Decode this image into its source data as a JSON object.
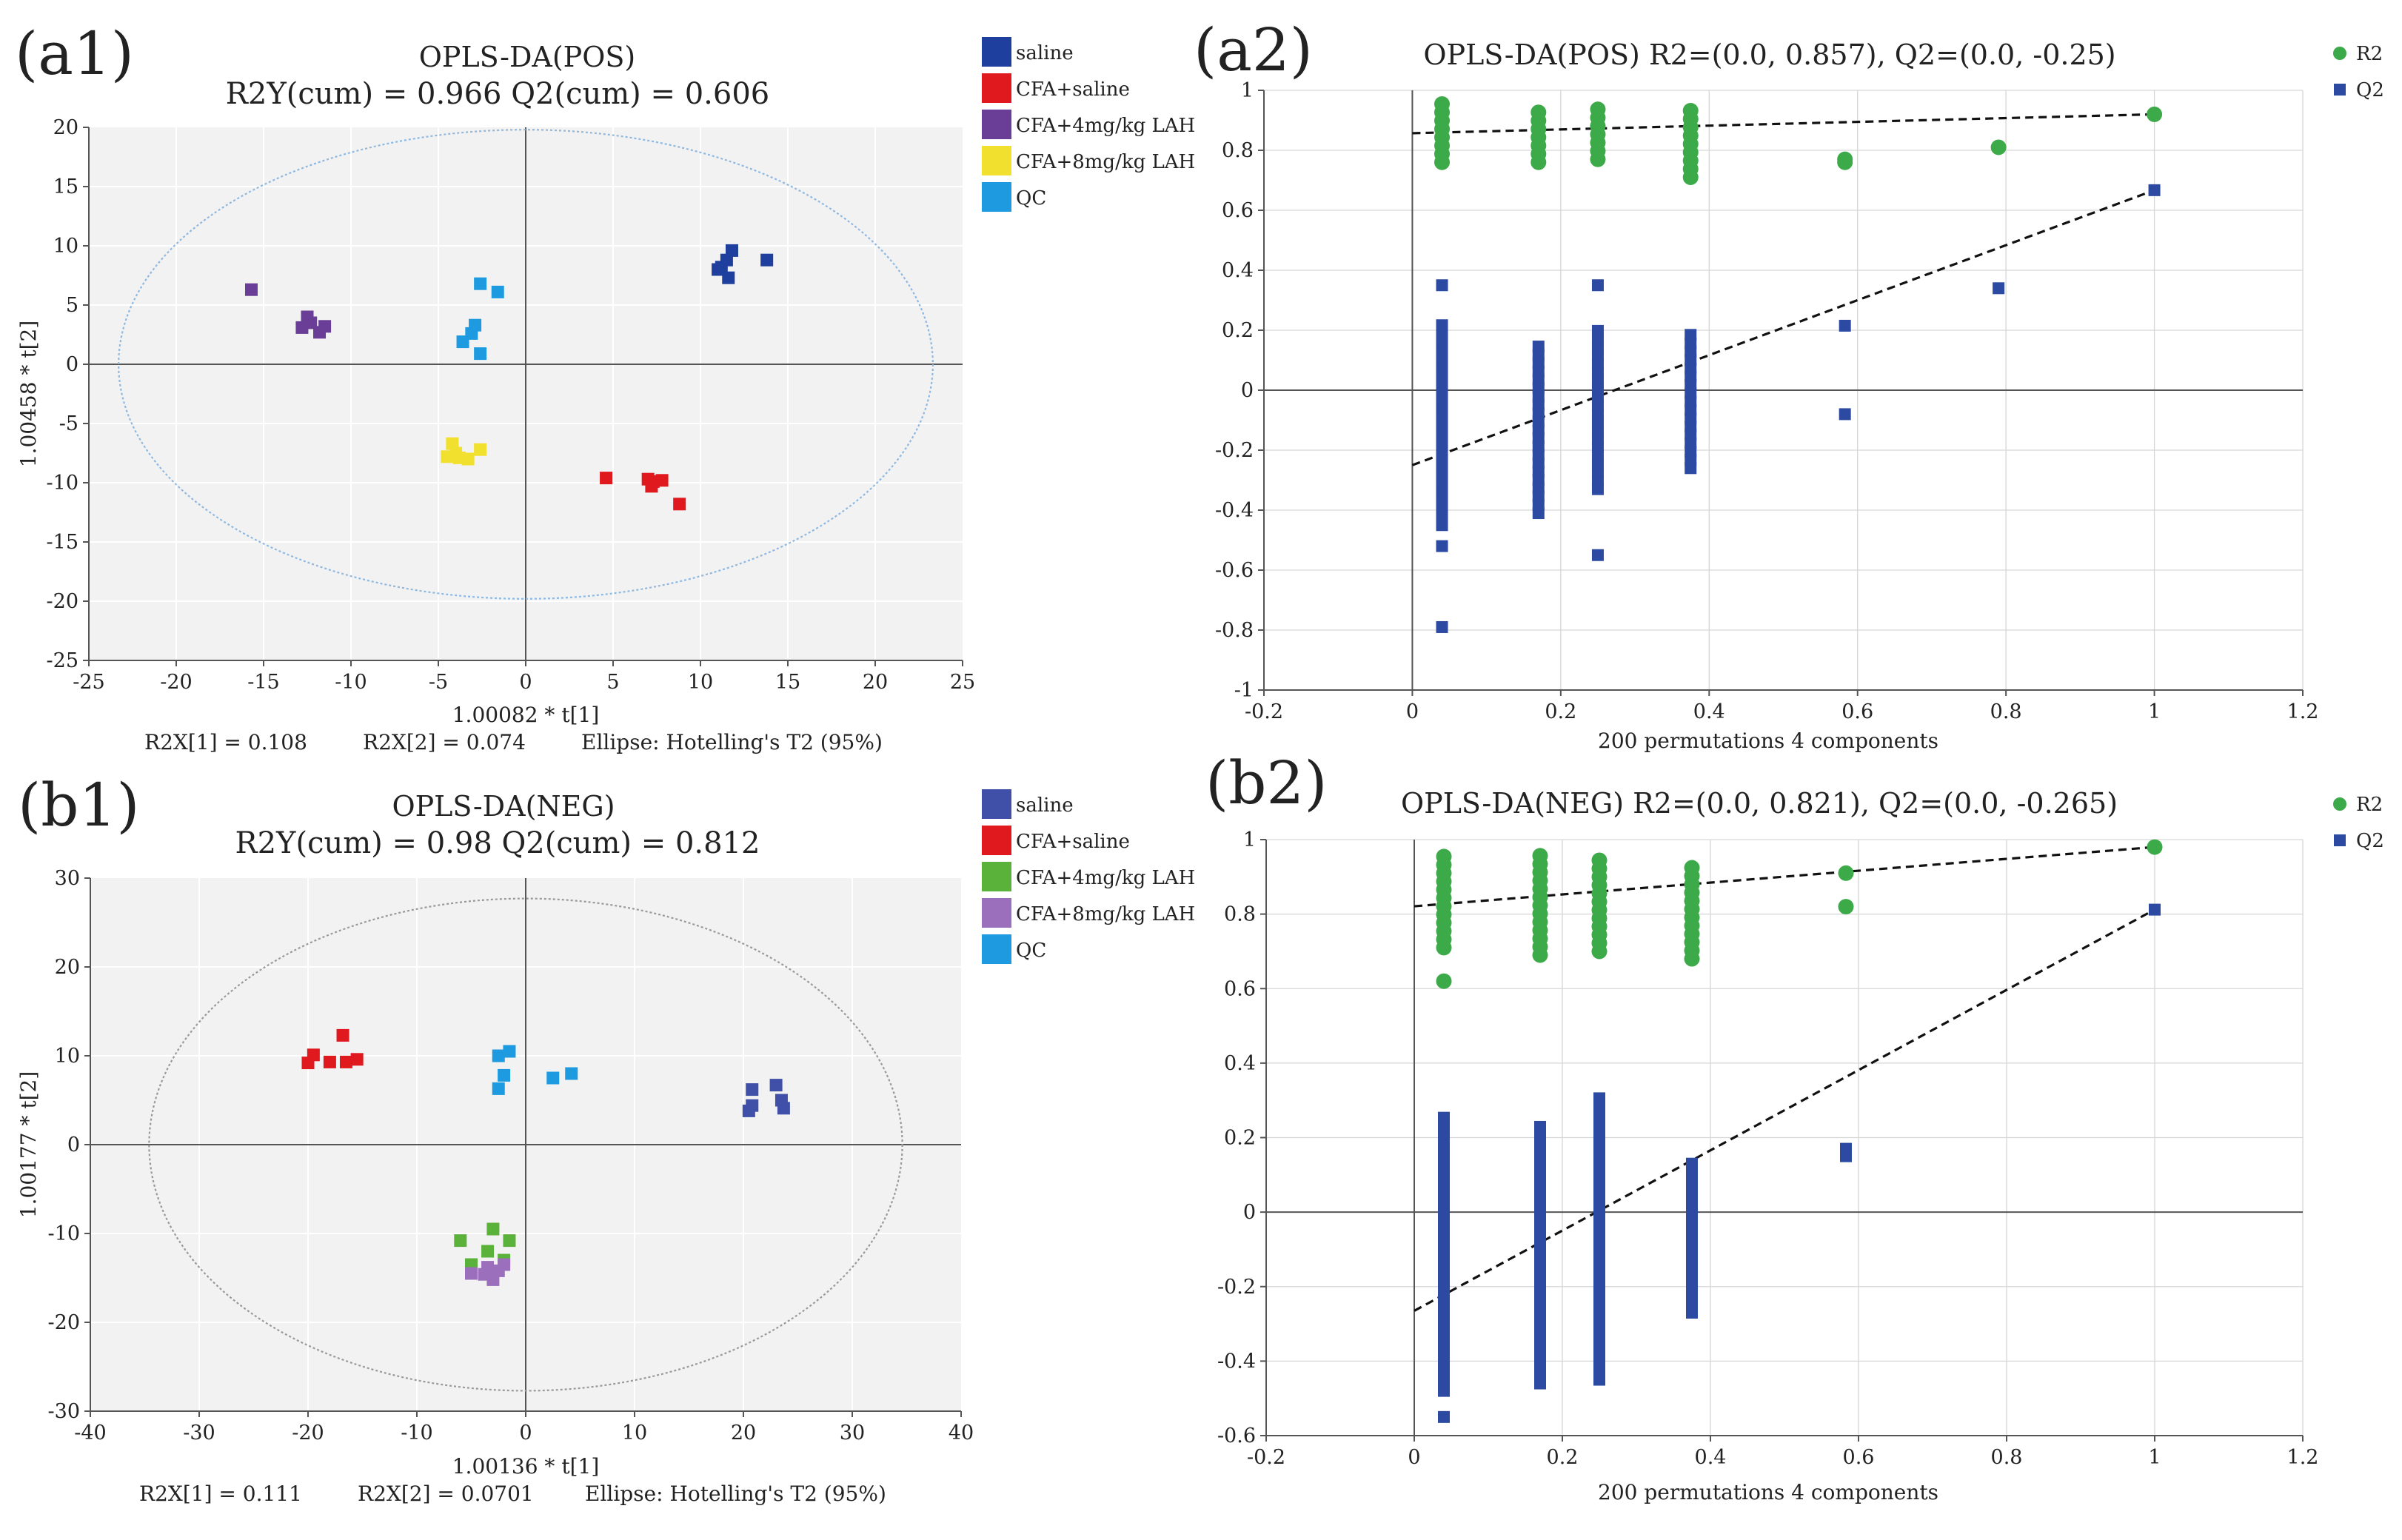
{
  "chart_data": [
    {
      "panel": "(a1)",
      "type": "scatter",
      "title": "OPLS-DA(POS)",
      "subtitle": "R2Y(cum) = 0.966 Q2(cum) = 0.606",
      "xlabel": "1.00082 * t[1]",
      "ylabel": "1.00458 * t[2]",
      "xlim": [
        -25,
        25
      ],
      "ylim": [
        -25,
        20
      ],
      "xticks": [
        -25,
        -20,
        -15,
        -10,
        -5,
        0,
        5,
        10,
        15,
        20,
        25
      ],
      "yticks": [
        -25,
        -20,
        -15,
        -10,
        -5,
        0,
        5,
        10,
        15,
        20
      ],
      "footnotes": [
        "R2X[1] = 0.108",
        "R2X[2] = 0.074",
        "Ellipse: Hotelling's T2 (95%)"
      ],
      "ellipse": {
        "rx": 23.3,
        "ry": 19.8,
        "color": "#8fb8e0"
      },
      "legend": [
        {
          "label": "saline",
          "color": "#1f3f9e"
        },
        {
          "label": "CFA+saline",
          "color": "#e0191e"
        },
        {
          "label": "CFA+4mg/kg LAH",
          "color": "#6a3d96"
        },
        {
          "label": "CFA+8mg/kg LAH",
          "color": "#f2e02e"
        },
        {
          "label": "QC",
          "color": "#1e9be0"
        }
      ],
      "series": [
        {
          "name": "saline",
          "points": [
            [
              11.2,
              8.2
            ],
            [
              11.5,
              8.8
            ],
            [
              11.8,
              9.6
            ],
            [
              11.6,
              7.3
            ],
            [
              13.8,
              8.8
            ],
            [
              11.0,
              8.0
            ]
          ]
        },
        {
          "name": "CFA+saline",
          "points": [
            [
              4.6,
              -9.6
            ],
            [
              7.0,
              -9.7
            ],
            [
              7.2,
              -10.3
            ],
            [
              7.8,
              -9.8
            ],
            [
              8.8,
              -11.8
            ],
            [
              7.3,
              -9.9
            ]
          ]
        },
        {
          "name": "CFA+4mg/kg LAH",
          "points": [
            [
              -15.7,
              6.3
            ],
            [
              -12.8,
              3.1
            ],
            [
              -12.5,
              4.0
            ],
            [
              -11.8,
              2.7
            ],
            [
              -11.5,
              3.2
            ],
            [
              -12.3,
              3.5
            ]
          ]
        },
        {
          "name": "CFA+8mg/kg LAH",
          "points": [
            [
              -4.5,
              -7.8
            ],
            [
              -4.2,
              -6.7
            ],
            [
              -3.8,
              -7.9
            ],
            [
              -3.3,
              -8.0
            ],
            [
              -2.6,
              -7.2
            ],
            [
              -4.0,
              -7.5
            ]
          ]
        },
        {
          "name": "QC",
          "points": [
            [
              -2.6,
              6.8
            ],
            [
              -1.6,
              6.1
            ],
            [
              -2.9,
              3.3
            ],
            [
              -3.1,
              2.6
            ],
            [
              -3.6,
              1.9
            ],
            [
              -2.6,
              0.9
            ]
          ]
        }
      ]
    },
    {
      "panel": "(a2)",
      "type": "scatter",
      "title": "OPLS-DA(POS)  R2=(0.0, 0.857), Q2=(0.0, -0.25)",
      "xlabel": "200 permutations 4 components",
      "xlim": [
        -0.2,
        1.2
      ],
      "ylim": [
        -1,
        1
      ],
      "xticks": [
        -0.2,
        0,
        0.2,
        0.4,
        0.6,
        0.8,
        1,
        1.2
      ],
      "yticks": [
        -1,
        -0.8,
        -0.6,
        -0.4,
        -0.2,
        0,
        0.2,
        0.4,
        0.6,
        0.8,
        1
      ],
      "legend": [
        {
          "label": "R2",
          "color": "#3caa48"
        },
        {
          "label": "Q2",
          "color": "#2c4aa2"
        }
      ],
      "regression": {
        "R2": [
          0.857,
          0.92
        ],
        "Q2": [
          -0.25,
          0.667
        ]
      },
      "permutation_columns": [
        {
          "x": 0.04,
          "r2": [
            0.76,
            0.97
          ],
          "q2": [
            -0.45,
            0.22
          ],
          "q2_extra": [
            0.35,
            -0.52,
            -0.79
          ]
        },
        {
          "x": 0.17,
          "r2": [
            0.76,
            0.94
          ],
          "q2": [
            -0.41,
            0.16
          ]
        },
        {
          "x": 0.25,
          "r2": [
            0.77,
            0.96
          ],
          "q2": [
            -0.33,
            0.21
          ],
          "q2_extra": [
            0.35,
            -0.55
          ]
        },
        {
          "x": 0.375,
          "r2": [
            0.71,
            0.95
          ],
          "q2": [
            -0.26,
            0.19
          ]
        }
      ],
      "series": [
        {
          "name": "R2",
          "points": [
            [
              0.583,
              0.77
            ],
            [
              0.583,
              0.76
            ],
            [
              0.79,
              0.81
            ],
            [
              1.0,
              0.92
            ]
          ]
        },
        {
          "name": "Q2",
          "points": [
            [
              0.583,
              0.215
            ],
            [
              0.583,
              -0.08
            ],
            [
              0.79,
              0.34
            ],
            [
              1.0,
              0.667
            ]
          ]
        }
      ]
    },
    {
      "panel": "(b1)",
      "type": "scatter",
      "title": "OPLS-DA(NEG)",
      "subtitle": "R2Y(cum) = 0.98   Q2(cum) = 0.812",
      "xlabel": "1.00136 * t[1]",
      "ylabel": "1.00177 * t[2]",
      "xlim": [
        -40,
        40
      ],
      "ylim": [
        -30,
        30
      ],
      "xticks": [
        -40,
        -30,
        -20,
        -10,
        0,
        10,
        20,
        30,
        40
      ],
      "yticks": [
        -30,
        -20,
        -10,
        0,
        10,
        20,
        30
      ],
      "footnotes": [
        "R2X[1] = 0.111",
        "R2X[2] = 0.0701",
        "Ellipse: Hotelling's T2 (95%)"
      ],
      "ellipse": {
        "rx": 34.6,
        "ry": 27.7,
        "color": "#999999"
      },
      "legend": [
        {
          "label": "saline",
          "color": "#4050a8"
        },
        {
          "label": "CFA+saline",
          "color": "#e0191e"
        },
        {
          "label": "CFA+4mg/kg LAH",
          "color": "#5bb23a"
        },
        {
          "label": "CFA+8mg/kg LAH",
          "color": "#9b6fbb"
        },
        {
          "label": "QC",
          "color": "#1e9be0"
        }
      ],
      "series": [
        {
          "name": "saline",
          "points": [
            [
              20.8,
              6.2
            ],
            [
              23.0,
              6.7
            ],
            [
              23.5,
              5.0
            ],
            [
              23.7,
              4.1
            ],
            [
              20.5,
              3.8
            ],
            [
              20.8,
              4.4
            ]
          ]
        },
        {
          "name": "CFA+saline",
          "points": [
            [
              -20.0,
              9.2
            ],
            [
              -19.5,
              10.1
            ],
            [
              -18.0,
              9.3
            ],
            [
              -16.8,
              12.3
            ],
            [
              -16.5,
              9.3
            ],
            [
              -15.5,
              9.6
            ]
          ]
        },
        {
          "name": "CFA+4mg/kg LAH",
          "points": [
            [
              -6.0,
              -10.8
            ],
            [
              -5.0,
              -13.5
            ],
            [
              -3.0,
              -9.5
            ],
            [
              -2.0,
              -13.0
            ],
            [
              -1.5,
              -10.8
            ],
            [
              -3.5,
              -12.0
            ]
          ]
        },
        {
          "name": "CFA+8mg/kg LAH",
          "points": [
            [
              -5.0,
              -14.5
            ],
            [
              -3.5,
              -13.8
            ],
            [
              -3.0,
              -15.2
            ],
            [
              -2.5,
              -14.2
            ],
            [
              -2.0,
              -13.5
            ],
            [
              -3.8,
              -14.6
            ]
          ]
        },
        {
          "name": "QC",
          "points": [
            [
              -2.5,
              10.0
            ],
            [
              -1.5,
              10.5
            ],
            [
              -2.0,
              7.8
            ],
            [
              -2.5,
              6.3
            ],
            [
              2.5,
              7.5
            ],
            [
              4.2,
              8.0
            ]
          ]
        }
      ]
    },
    {
      "panel": "(b2)",
      "type": "scatter",
      "title": "OPLS-DA(NEG)  R2=(0.0, 0.821), Q2=(0.0, -0.265)",
      "xlabel": "200 permutations 4 components",
      "xlim": [
        -0.2,
        1.2
      ],
      "ylim": [
        -0.6,
        1
      ],
      "xticks": [
        -0.2,
        0,
        0.2,
        0.4,
        0.6,
        0.8,
        1,
        1.2
      ],
      "yticks": [
        -0.6,
        -0.4,
        -0.2,
        0,
        0.2,
        0.4,
        0.6,
        0.8,
        1
      ],
      "legend": [
        {
          "label": "R2",
          "color": "#3caa48"
        },
        {
          "label": "Q2",
          "color": "#2c4aa2"
        }
      ],
      "regression": {
        "R2": [
          0.821,
          0.98
        ],
        "Q2": [
          -0.265,
          0.812
        ]
      },
      "permutation_columns": [
        {
          "x": 0.04,
          "r2": [
            0.71,
            0.97
          ],
          "q2": [
            -0.48,
            0.27
          ],
          "r2_extra": [
            0.62
          ],
          "q2_extra": [
            -0.55
          ]
        },
        {
          "x": 0.17,
          "r2": [
            0.69,
            0.97
          ],
          "q2": [
            -0.46,
            0.25
          ]
        },
        {
          "x": 0.25,
          "r2": [
            0.7,
            0.95
          ],
          "q2": [
            -0.45,
            0.32
          ]
        },
        {
          "x": 0.375,
          "r2": [
            0.68,
            0.94
          ],
          "q2": [
            -0.27,
            0.13
          ]
        }
      ],
      "series": [
        {
          "name": "R2",
          "points": [
            [
              0.583,
              0.91
            ],
            [
              0.583,
              0.82
            ],
            [
              1.0,
              0.98
            ]
          ]
        },
        {
          "name": "Q2",
          "points": [
            [
              0.583,
              0.17
            ],
            [
              0.583,
              0.15
            ],
            [
              1.0,
              0.812
            ]
          ]
        }
      ]
    }
  ]
}
